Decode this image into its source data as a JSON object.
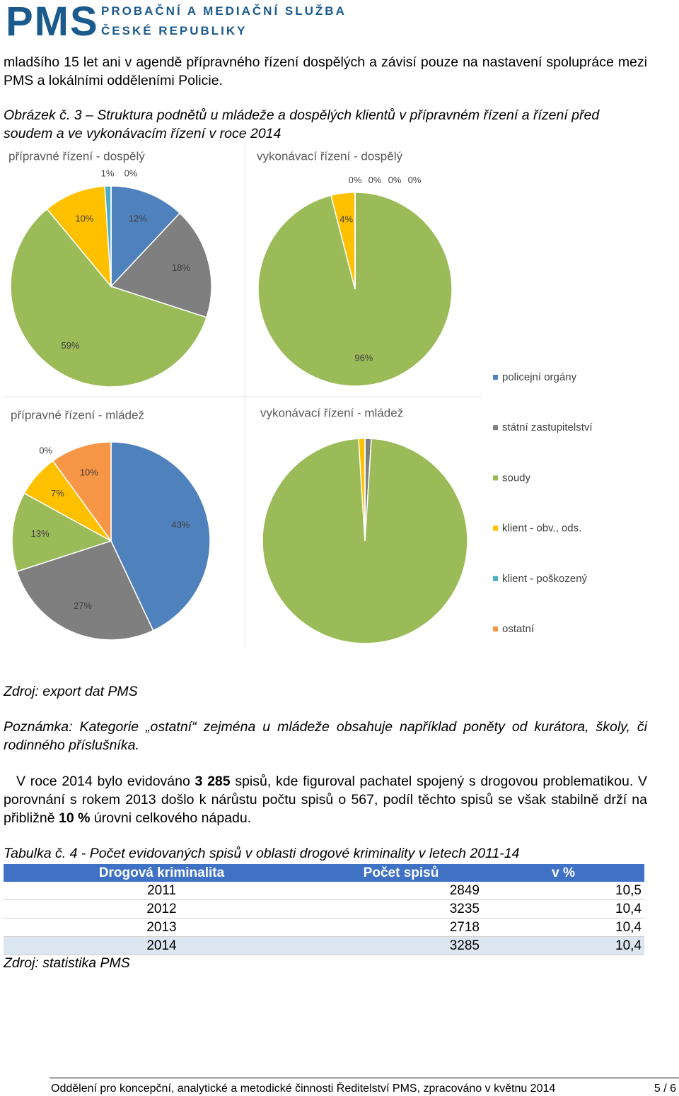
{
  "header": {
    "logo": "PMS",
    "org_line1": "PROBAČNÍ A MEDIAČNÍ SLUŽBA",
    "org_line2": "ČESKÉ REPUBLIKY"
  },
  "intro": "mladšího 15 let ani v  agendě přípravného řízení dospělých a závisí pouze na nastavení spolupráce mezi PMS a lokálními odděleními Policie.",
  "figure_caption": "Obrázek č. 3 – Struktura podnětů u mládeže a dospělých klientů v přípravném řízení a řízení před soudem a ve vykonávacím řízení v roce 2014",
  "chart_data": [
    {
      "type": "pie",
      "title": "přípravné řízení - dospělý",
      "categories": [
        "policejní orgány",
        "státní zastupitelství",
        "soudy",
        "klient - obv., ods.",
        "klient - poškozený",
        "ostatní"
      ],
      "colors": [
        "#4f81bd",
        "#7f7f7f",
        "#9bbb59",
        "#ffc000",
        "#4bacc6",
        "#f79646"
      ],
      "values": [
        12,
        18,
        59,
        10,
        1,
        0
      ],
      "value_labels": [
        "12%",
        "18%",
        "59%",
        "10%",
        "1%",
        "0%"
      ]
    },
    {
      "type": "pie",
      "title": "vykonávací řízení - dospělý",
      "values": [
        0,
        0,
        96,
        4,
        0,
        0
      ],
      "value_labels": [
        "0%",
        "0%",
        "96%",
        "4%",
        "0%",
        "0%"
      ]
    },
    {
      "type": "pie",
      "title": "přípravné řízení - mládež",
      "values": [
        43,
        27,
        13,
        7,
        0,
        10
      ],
      "value_labels": [
        "43%",
        "27%",
        "13%",
        "7%",
        "0%",
        "10%"
      ]
    },
    {
      "type": "pie",
      "title": "vykonávací řízení - mládež",
      "values": [
        0,
        1,
        98,
        1,
        0,
        0
      ]
    }
  ],
  "source_1": "Zdroj: export dat PMS",
  "note": "Poznámka: Kategorie „ostatní“ zejména u mládeže obsahuje například poněty od kurátora, školy, či rodinného příslušníka.",
  "paragraph": [
    "V roce 2014 bylo evidováno ",
    "3 285",
    " spisů, kde figuroval pachatel spojený s drogovou problematikou. V porovnání s rokem 2013 došlo k nárůstu počtu spisů o 567, podíl těchto spisů se však stabilně drží na přibližně ",
    "10 %",
    " úrovni celkového nápadu."
  ],
  "table_caption": "Tabulka č. 4 - Počet evidovaných spisů v oblasti drogové kriminality v letech 2011-14",
  "table": {
    "header": [
      "Drogová kriminalita",
      "Počet spisů",
      "v %"
    ],
    "rows": [
      [
        2011,
        2849,
        "10,5"
      ],
      [
        2012,
        3235,
        "10,4"
      ],
      [
        2013,
        2718,
        "10,4"
      ],
      [
        2014,
        3285,
        "10,4"
      ]
    ]
  },
  "source_2": "Zdroj: statistika PMS",
  "footer": {
    "text": "Oddělení pro koncepční, analytické a metodické činnosti Ředitelství PMS, zpracováno v květnu 2014",
    "page": "5 / 6"
  }
}
